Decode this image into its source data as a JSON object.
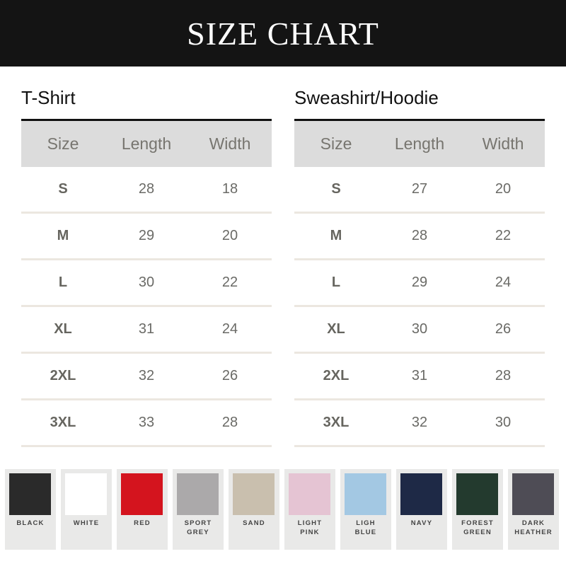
{
  "title": "SIZE CHART",
  "tables": [
    {
      "title": "T-Shirt",
      "headers": [
        "Size",
        "Length",
        "Width"
      ],
      "rows": [
        [
          "S",
          "28",
          "18"
        ],
        [
          "M",
          "29",
          "20"
        ],
        [
          "L",
          "30",
          "22"
        ],
        [
          "XL",
          "31",
          "24"
        ],
        [
          "2XL",
          "32",
          "26"
        ],
        [
          "3XL",
          "33",
          "28"
        ]
      ]
    },
    {
      "title": "Sweashirt/Hoodie",
      "headers": [
        "Size",
        "Length",
        "Width"
      ],
      "rows": [
        [
          "S",
          "27",
          "20"
        ],
        [
          "M",
          "28",
          "22"
        ],
        [
          "L",
          "29",
          "24"
        ],
        [
          "XL",
          "30",
          "26"
        ],
        [
          "2XL",
          "31",
          "28"
        ],
        [
          "3XL",
          "32",
          "30"
        ]
      ]
    }
  ],
  "colors": [
    {
      "label": "BLACK",
      "hex": "#2a2a2a"
    },
    {
      "label": "WHITE",
      "hex": "#ffffff"
    },
    {
      "label": "RED",
      "hex": "#d4141e"
    },
    {
      "label": "SPORT\nGREY",
      "hex": "#aba9aa"
    },
    {
      "label": "SAND",
      "hex": "#c9bfae"
    },
    {
      "label": "LIGHT\nPINK",
      "hex": "#e5c4d3"
    },
    {
      "label": "LIGH\nBLUE",
      "hex": "#a3c8e3"
    },
    {
      "label": "NAVY",
      "hex": "#1e2946"
    },
    {
      "label": "FOREST\nGREEN",
      "hex": "#233a2e"
    },
    {
      "label": "DARK\nHEATHER",
      "hex": "#4e4c55"
    }
  ]
}
